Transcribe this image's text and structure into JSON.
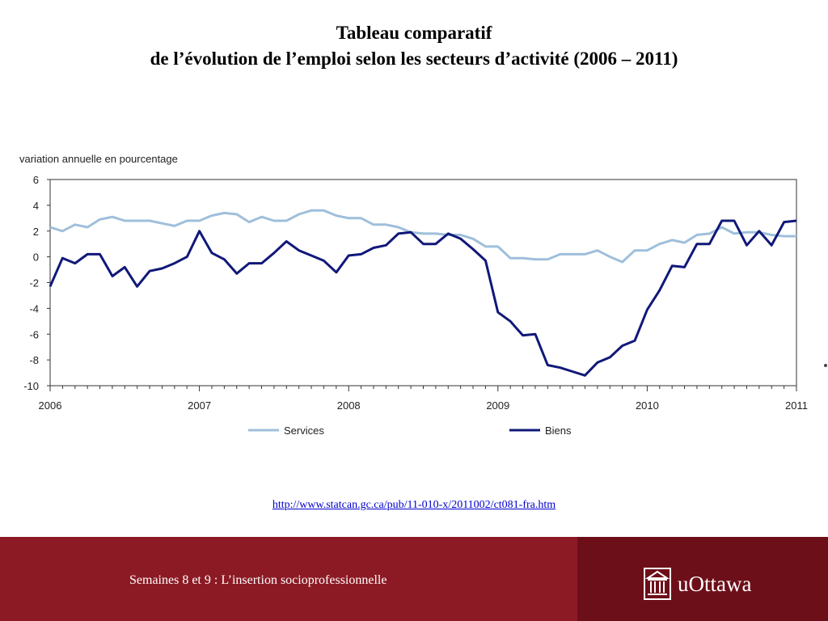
{
  "slide": {
    "title_line1": "Tableau comparatif",
    "title_line2": "de l’évolution de l’emploi selon les secteurs d’activité (2006 – 2011)",
    "source_link": "http://www.statcan.gc.ca/pub/11-010-x/2011002/ct081-fra.htm",
    "footer_text": "Semaines 8 et 9 : L’insertion socioprofessionnelle",
    "logo_text": "uOttawa"
  },
  "colors": {
    "services": "#9fbfdb",
    "biens": "#101878",
    "footer_bg": "#8c1a24",
    "footer_accent": "#6d0f19"
  },
  "chart_data": {
    "type": "line",
    "ylabel": "variation annuelle en pourcentage",
    "ylim": [
      -10,
      6
    ],
    "yticks": [
      6,
      4,
      2,
      0,
      -2,
      -4,
      -6,
      -8,
      -10
    ],
    "xlim": [
      2006,
      2011
    ],
    "xticks": [
      "2006",
      "2007",
      "2008",
      "2009",
      "2010",
      "2011"
    ],
    "grid": false,
    "legend": "bottom",
    "series": [
      {
        "name": "Services",
        "x": [
          2006.0,
          2006.083,
          2006.167,
          2006.25,
          2006.333,
          2006.417,
          2006.5,
          2006.583,
          2006.667,
          2006.75,
          2006.833,
          2006.917,
          2007.0,
          2007.083,
          2007.167,
          2007.25,
          2007.333,
          2007.417,
          2007.5,
          2007.583,
          2007.667,
          2007.75,
          2007.833,
          2007.917,
          2008.0,
          2008.083,
          2008.167,
          2008.25,
          2008.333,
          2008.417,
          2008.5,
          2008.583,
          2008.667,
          2008.75,
          2008.833,
          2008.917,
          2009.0,
          2009.083,
          2009.167,
          2009.25,
          2009.333,
          2009.417,
          2009.5,
          2009.583,
          2009.667,
          2009.75,
          2009.833,
          2009.917,
          2010.0,
          2010.083,
          2010.167,
          2010.25,
          2010.333,
          2010.417,
          2010.5,
          2010.583,
          2010.667,
          2010.75,
          2010.833,
          2010.917,
          2011.0
        ],
        "values": [
          2.3,
          2.0,
          2.5,
          2.3,
          2.9,
          3.1,
          2.8,
          2.8,
          2.8,
          2.6,
          2.4,
          2.8,
          2.8,
          3.2,
          3.4,
          3.3,
          2.7,
          3.1,
          2.8,
          2.8,
          3.3,
          3.6,
          3.6,
          3.2,
          3.0,
          3.0,
          2.5,
          2.5,
          2.3,
          1.9,
          1.8,
          1.8,
          1.7,
          1.7,
          1.4,
          0.8,
          0.8,
          -0.1,
          -0.1,
          -0.2,
          -0.2,
          0.2,
          0.2,
          0.2,
          0.5,
          0.0,
          -0.4,
          0.5,
          0.5,
          1.0,
          1.3,
          1.1,
          1.7,
          1.8,
          2.3,
          1.8,
          1.9,
          1.9,
          1.7,
          1.6,
          1.6
        ]
      },
      {
        "name": "Biens",
        "x": [
          2006.0,
          2006.083,
          2006.167,
          2006.25,
          2006.333,
          2006.417,
          2006.5,
          2006.583,
          2006.667,
          2006.75,
          2006.833,
          2006.917,
          2007.0,
          2007.083,
          2007.167,
          2007.25,
          2007.333,
          2007.417,
          2007.5,
          2007.583,
          2007.667,
          2007.75,
          2007.833,
          2007.917,
          2008.0,
          2008.083,
          2008.167,
          2008.25,
          2008.333,
          2008.417,
          2008.5,
          2008.583,
          2008.667,
          2008.75,
          2008.833,
          2008.917,
          2009.0,
          2009.083,
          2009.167,
          2009.25,
          2009.333,
          2009.417,
          2009.5,
          2009.583,
          2009.667,
          2009.75,
          2009.833,
          2009.917,
          2010.0,
          2010.083,
          2010.167,
          2010.25,
          2010.333,
          2010.417,
          2010.5,
          2010.583,
          2010.667,
          2010.75,
          2010.833,
          2010.917,
          2011.0
        ],
        "values": [
          -2.3,
          -0.1,
          -0.5,
          0.2,
          0.2,
          -1.5,
          -0.8,
          -2.3,
          -1.1,
          -0.9,
          -0.5,
          0.0,
          2.0,
          0.3,
          -0.2,
          -1.3,
          -0.5,
          -0.5,
          0.3,
          1.2,
          0.5,
          0.1,
          -0.3,
          -1.2,
          0.1,
          0.2,
          0.7,
          0.9,
          1.8,
          1.9,
          1.0,
          1.0,
          1.8,
          1.4,
          0.6,
          -0.3,
          -4.3,
          -5.0,
          -6.1,
          -6.0,
          -8.4,
          -8.6,
          -8.9,
          -9.2,
          -8.2,
          -7.8,
          -6.9,
          -6.5,
          -4.1,
          -2.6,
          -0.7,
          -0.8,
          1.0,
          1.0,
          2.8,
          2.8,
          0.9,
          2.0,
          0.9,
          2.7,
          2.8
        ]
      }
    ]
  }
}
